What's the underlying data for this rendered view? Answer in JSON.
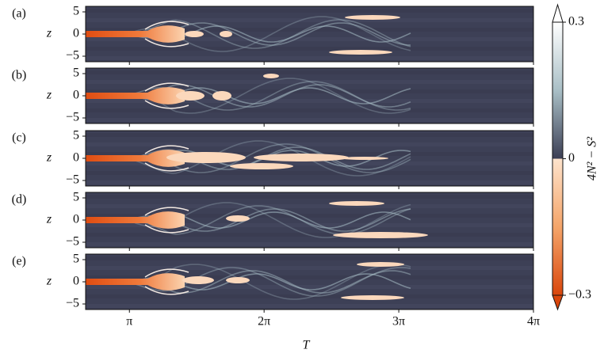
{
  "chart_data": {
    "type": "heatmap",
    "panels": [
      {
        "label": "(a)"
      },
      {
        "label": "(b)"
      },
      {
        "label": "(c)"
      },
      {
        "label": "(d)"
      },
      {
        "label": "(e)"
      }
    ],
    "ylabel": "z",
    "xlabel": "T",
    "xlim": [
      2.12,
      12.566
    ],
    "xticks": [
      {
        "value": 3.14159,
        "label": "π"
      },
      {
        "value": 6.28319,
        "label": "2π"
      },
      {
        "value": 9.42478,
        "label": "3π"
      },
      {
        "value": 12.56637,
        "label": "4π"
      }
    ],
    "ylim": [
      -6.25,
      6.25
    ],
    "yticks": [
      5,
      0,
      {
        "value": -5,
        "label": "−5"
      }
    ],
    "colorbar": {
      "label": "4N² − S²",
      "clim": [
        -0.3,
        0.3
      ],
      "ticks": [
        {
          "value": 0.3,
          "label": "0.3"
        },
        0,
        {
          "value": -0.3,
          "label": "−0.3"
        }
      ]
    }
  }
}
